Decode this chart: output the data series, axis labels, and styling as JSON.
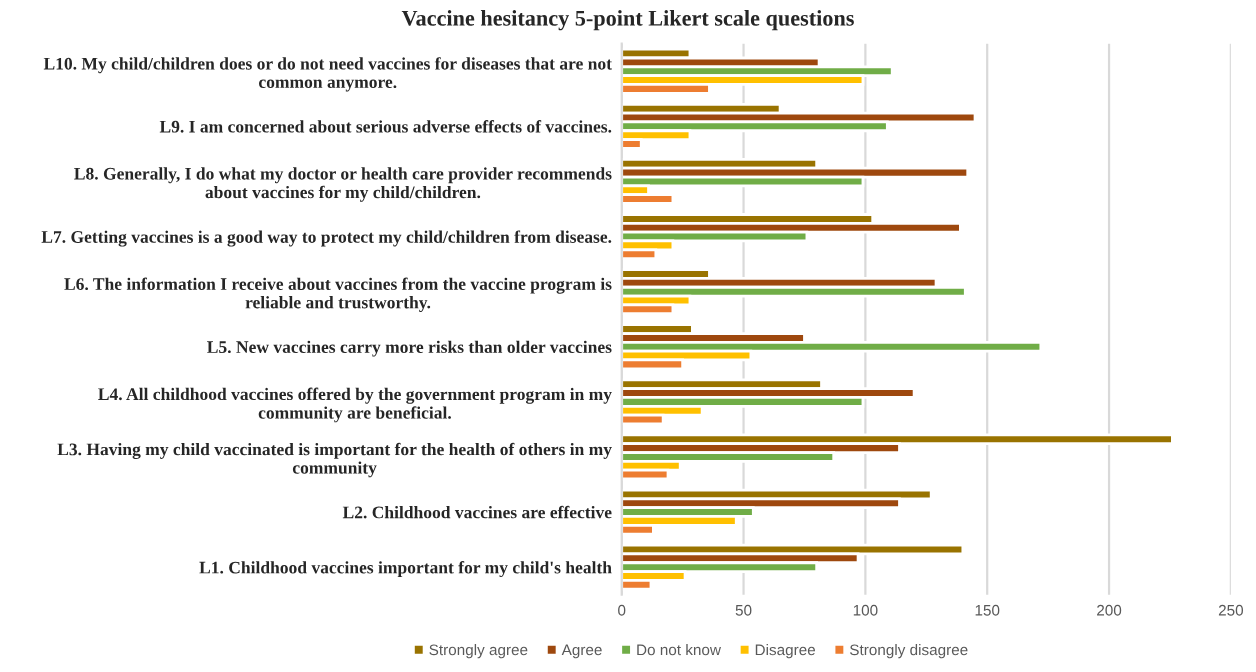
{
  "chart_data": {
    "type": "bar",
    "orientation": "horizontal",
    "title": "Vaccine hesitancy 5-point Likert scale questions",
    "categories": [
      "L10. My child/children does or do not need vaccines for diseases that are not\ncommon anymore.",
      "L9. I am concerned about serious adverse effects of vaccines.",
      "L8. Generally, I do what my doctor or health care provider recommends\nabout vaccines for my child/children.",
      "L7. Getting vaccines is a good way to protect my child/children from disease.",
      "L6. The information I receive about vaccines from the vaccine program is\nreliable and trustworthy.",
      "L5. New vaccines carry more risks than older vaccines",
      "L4. All childhood vaccines offered by the government program in my\ncommunity are beneficial.",
      "L3. Having my child vaccinated is important for the health of others in my\ncommunity",
      "L2. Childhood vaccines are effective",
      "L1. Childhood vaccines important for my child's health"
    ],
    "series": [
      {
        "name": "Strongly agree",
        "color": "#997300",
        "values": [
          28,
          65,
          80,
          103,
          36,
          29,
          82,
          226,
          127,
          140
        ]
      },
      {
        "name": "Agree",
        "color": "#9e480e",
        "values": [
          81,
          145,
          142,
          139,
          129,
          75,
          120,
          114,
          114,
          97
        ]
      },
      {
        "name": "Do not know",
        "color": "#70ad47",
        "values": [
          111,
          109,
          99,
          76,
          141,
          172,
          99,
          87,
          54,
          80
        ]
      },
      {
        "name": "Disagree",
        "color": "#ffc000",
        "values": [
          99,
          28,
          11,
          21,
          28,
          53,
          33,
          24,
          47,
          26
        ]
      },
      {
        "name": "Strongly disagree",
        "color": "#ed7d31",
        "values": [
          36,
          8,
          21,
          14,
          21,
          25,
          17,
          19,
          13,
          12
        ]
      }
    ],
    "xlim": [
      0,
      250
    ],
    "xticks": [
      0,
      50,
      100,
      150,
      200,
      250
    ],
    "grid": "x",
    "legend": "bottom"
  }
}
